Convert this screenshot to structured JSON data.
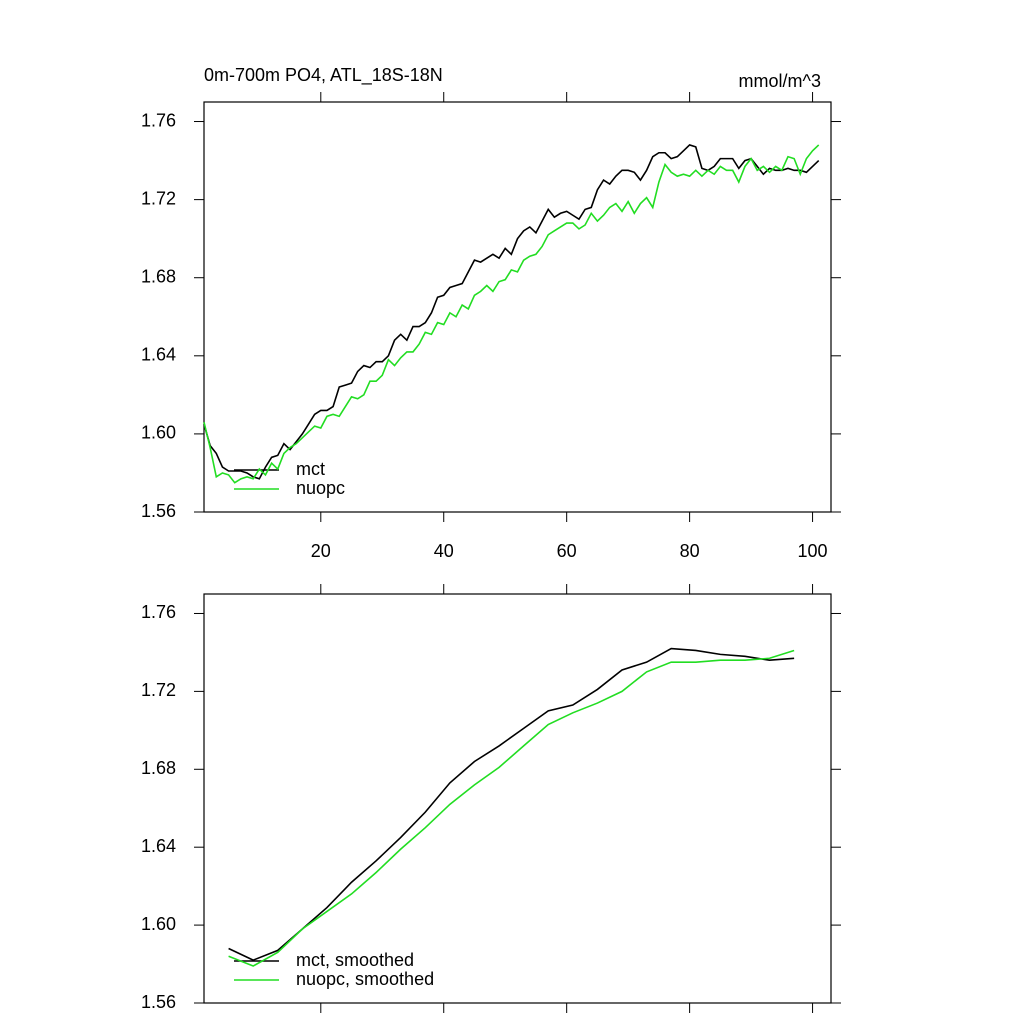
{
  "chart_data": [
    {
      "type": "line",
      "title": "0m-700m PO4, ATL_18S-18N",
      "units": "mmol/m^3",
      "x": [
        1,
        2,
        3,
        4,
        5,
        6,
        7,
        8,
        9,
        10,
        11,
        12,
        13,
        14,
        15,
        16,
        17,
        18,
        19,
        20,
        21,
        22,
        23,
        24,
        25,
        26,
        27,
        28,
        29,
        30,
        31,
        32,
        33,
        34,
        35,
        36,
        37,
        38,
        39,
        40,
        41,
        42,
        43,
        44,
        45,
        46,
        47,
        48,
        49,
        50,
        51,
        52,
        53,
        54,
        55,
        56,
        57,
        58,
        59,
        60,
        61,
        62,
        63,
        64,
        65,
        66,
        67,
        68,
        69,
        70,
        71,
        72,
        73,
        74,
        75,
        76,
        77,
        78,
        79,
        80,
        81,
        82,
        83,
        84,
        85,
        86,
        87,
        88,
        89,
        90,
        91,
        92,
        93,
        94,
        95,
        96,
        97,
        98,
        99,
        100,
        101
      ],
      "series": [
        {
          "name": "mct",
          "color": "#000000",
          "values": [
            1.605,
            1.594,
            1.59,
            1.583,
            1.581,
            1.581,
            1.581,
            1.58,
            1.578,
            1.577,
            1.583,
            1.588,
            1.589,
            1.595,
            1.592,
            1.596,
            1.6,
            1.605,
            1.61,
            1.612,
            1.612,
            1.614,
            1.624,
            1.625,
            1.626,
            1.632,
            1.635,
            1.634,
            1.637,
            1.637,
            1.64,
            1.648,
            1.651,
            1.648,
            1.655,
            1.655,
            1.657,
            1.662,
            1.67,
            1.671,
            1.675,
            1.676,
            1.677,
            1.683,
            1.689,
            1.688,
            1.69,
            1.692,
            1.69,
            1.695,
            1.692,
            1.7,
            1.704,
            1.706,
            1.703,
            1.709,
            1.715,
            1.711,
            1.713,
            1.714,
            1.712,
            1.71,
            1.715,
            1.716,
            1.725,
            1.73,
            1.728,
            1.732,
            1.735,
            1.735,
            1.734,
            1.73,
            1.735,
            1.742,
            1.744,
            1.744,
            1.741,
            1.742,
            1.745,
            1.748,
            1.747,
            1.736,
            1.735,
            1.737,
            1.741,
            1.741,
            1.741,
            1.736,
            1.74,
            1.741,
            1.737,
            1.733,
            1.736,
            1.735,
            1.735,
            1.736,
            1.735,
            1.735,
            1.734,
            1.737,
            1.74
          ]
        },
        {
          "name": "nuopc",
          "color": "#22dd22",
          "values": [
            1.606,
            1.593,
            1.578,
            1.58,
            1.579,
            1.575,
            1.577,
            1.578,
            1.577,
            1.582,
            1.579,
            1.585,
            1.582,
            1.59,
            1.593,
            1.595,
            1.598,
            1.601,
            1.604,
            1.603,
            1.609,
            1.61,
            1.609,
            1.614,
            1.619,
            1.618,
            1.62,
            1.627,
            1.627,
            1.63,
            1.638,
            1.635,
            1.639,
            1.642,
            1.642,
            1.646,
            1.652,
            1.651,
            1.657,
            1.656,
            1.662,
            1.66,
            1.666,
            1.664,
            1.671,
            1.673,
            1.676,
            1.673,
            1.678,
            1.679,
            1.684,
            1.683,
            1.689,
            1.691,
            1.692,
            1.696,
            1.702,
            1.704,
            1.706,
            1.708,
            1.708,
            1.705,
            1.707,
            1.713,
            1.709,
            1.712,
            1.716,
            1.718,
            1.714,
            1.719,
            1.713,
            1.718,
            1.721,
            1.716,
            1.729,
            1.738,
            1.734,
            1.732,
            1.733,
            1.732,
            1.735,
            1.732,
            1.735,
            1.733,
            1.737,
            1.735,
            1.735,
            1.729,
            1.737,
            1.741,
            1.735,
            1.737,
            1.734,
            1.737,
            1.735,
            1.742,
            1.741,
            1.733,
            1.741,
            1.745,
            1.748
          ]
        }
      ],
      "xlim": [
        1,
        103
      ],
      "xticks": [
        20,
        40,
        60,
        80,
        100
      ],
      "xtick_labels": true,
      "ylim": [
        1.56,
        1.77
      ],
      "yticks": [
        1.56,
        {
          "value": 1.6,
          "label": "1.60"
        },
        1.64,
        1.68,
        1.72,
        1.76
      ]
    },
    {
      "type": "line",
      "x": [
        5,
        9,
        13,
        17,
        21,
        25,
        29,
        33,
        37,
        41,
        45,
        49,
        53,
        57,
        61,
        65,
        69,
        73,
        77,
        81,
        85,
        89,
        93,
        97
      ],
      "series": [
        {
          "name": "mct, smoothed",
          "color": "#000000",
          "values": [
            1.588,
            1.582,
            1.587,
            1.598,
            1.609,
            1.622,
            1.633,
            1.645,
            1.658,
            1.673,
            1.684,
            1.692,
            1.701,
            1.71,
            1.713,
            1.721,
            1.731,
            1.735,
            1.742,
            1.741,
            1.739,
            1.738,
            1.736,
            1.737
          ]
        },
        {
          "name": "nuopc, smoothed",
          "color": "#22dd22",
          "values": [
            1.584,
            1.579,
            1.586,
            1.598,
            1.607,
            1.616,
            1.627,
            1.639,
            1.65,
            1.662,
            1.672,
            1.681,
            1.692,
            1.703,
            1.709,
            1.714,
            1.72,
            1.73,
            1.735,
            1.735,
            1.736,
            1.736,
            1.737,
            1.741
          ]
        }
      ],
      "xlim": [
        1,
        103
      ],
      "xticks": [
        20,
        40,
        60,
        80,
        100
      ],
      "xtick_labels": false,
      "ylim": [
        1.56,
        1.77
      ],
      "yticks": [
        1.56,
        {
          "value": 1.6,
          "label": "1.60"
        },
        1.64,
        1.68,
        1.72,
        1.76
      ]
    }
  ]
}
